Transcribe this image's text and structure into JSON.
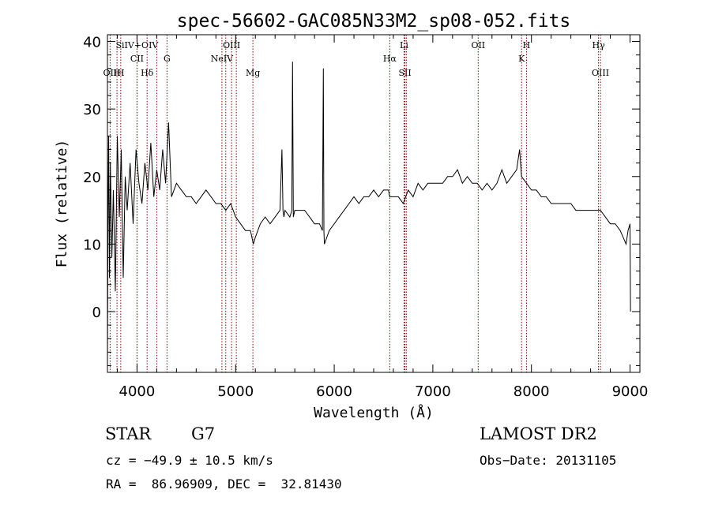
{
  "chart_data": {
    "type": "line",
    "title": "spec-56602-GAC085N33M2_sp08-052.fits",
    "xlabel": "Wavelength (Å)",
    "ylabel": "Flux (relative)",
    "xlim": [
      3700,
      9100
    ],
    "ylim": [
      -9,
      41
    ],
    "xticks": [
      4000,
      5000,
      6000,
      7000,
      8000,
      9000
    ],
    "yticks": [
      0,
      10,
      20,
      30,
      40
    ],
    "grid": false,
    "line_color": "#000000",
    "marker_color": "#8b0000",
    "series": [
      {
        "x": [
          3700,
          3705,
          3712,
          3720,
          3730,
          3745,
          3760,
          3780,
          3800,
          3820,
          3840,
          3860,
          3880,
          3900,
          3930,
          3960,
          3990,
          4020,
          4050,
          4080,
          4110,
          4140,
          4170,
          4200,
          4230,
          4260,
          4290,
          4320,
          4350,
          4400,
          4450,
          4500,
          4550,
          4600,
          4650,
          4700,
          4750,
          4800,
          4850,
          4900,
          4950,
          5000,
          5050,
          5100,
          5150,
          5180,
          5200,
          5250,
          5300,
          5350,
          5400,
          5450,
          5470,
          5480,
          5490,
          5500,
          5550,
          5570,
          5577,
          5585,
          5600,
          5650,
          5700,
          5750,
          5800,
          5850,
          5880,
          5890,
          5895,
          5900,
          5950,
          6000,
          6050,
          6100,
          6150,
          6200,
          6250,
          6300,
          6350,
          6400,
          6450,
          6500,
          6550,
          6563,
          6600,
          6650,
          6700,
          6750,
          6800,
          6850,
          6900,
          6950,
          7000,
          7050,
          7100,
          7150,
          7200,
          7250,
          7300,
          7350,
          7400,
          7450,
          7500,
          7550,
          7600,
          7650,
          7700,
          7750,
          7800,
          7850,
          7880,
          7900,
          7950,
          8000,
          8050,
          8100,
          8150,
          8200,
          8250,
          8300,
          8350,
          8400,
          8450,
          8500,
          8550,
          8600,
          8650,
          8700,
          8750,
          8800,
          8850,
          8900,
          8930,
          8960,
          8980,
          9000,
          9005
        ],
        "y": [
          -8,
          12,
          26,
          5,
          22,
          8,
          18,
          3,
          26,
          14,
          24,
          5,
          20,
          15,
          22,
          13,
          24,
          19,
          16,
          22,
          18,
          25,
          17,
          21,
          18,
          24,
          19,
          28,
          17,
          19,
          18,
          17,
          17,
          16,
          17,
          18,
          17,
          16,
          16,
          15,
          16,
          14,
          13,
          12,
          12,
          10,
          11,
          13,
          14,
          13,
          14,
          15,
          24,
          15,
          14,
          15,
          14,
          15,
          37,
          14,
          15,
          15,
          15,
          14,
          13,
          13,
          12,
          36,
          12,
          10,
          12,
          13,
          14,
          15,
          16,
          17,
          16,
          17,
          17,
          18,
          17,
          18,
          18,
          17,
          17,
          17,
          16,
          18,
          17,
          19,
          18,
          19,
          19,
          19,
          19,
          20,
          20,
          21,
          19,
          20,
          19,
          19,
          18,
          19,
          18,
          19,
          21,
          19,
          20,
          21,
          24,
          20,
          19,
          18,
          18,
          17,
          17,
          16,
          16,
          16,
          16,
          16,
          15,
          15,
          15,
          15,
          15,
          15,
          14,
          13,
          13,
          12,
          11,
          10,
          12,
          13,
          0
        ]
      }
    ],
    "line_markers": [
      {
        "wave": 3727,
        "label": "OII",
        "row": 3
      },
      {
        "wave": 3797,
        "label": "H",
        "row": 3
      },
      {
        "wave": 3835,
        "label": "H",
        "row": 3
      },
      {
        "wave": 4000,
        "label": "SiIV+OIV",
        "row": 1
      },
      {
        "wave": 4000,
        "label": "CII",
        "row": 2
      },
      {
        "wave": 4102,
        "label": "Hδ",
        "row": 3
      },
      {
        "wave": 4200,
        "label": "",
        "row": 0
      },
      {
        "wave": 4304,
        "label": "G",
        "row": 2
      },
      {
        "wave": 4861,
        "label": "NeIV",
        "row": 2
      },
      {
        "wave": 4900,
        "label": "",
        "row": 0
      },
      {
        "wave": 4959,
        "label": "OIII",
        "row": 1
      },
      {
        "wave": 5007,
        "label": "",
        "row": 0
      },
      {
        "wave": 5175,
        "label": "Mg",
        "row": 3
      },
      {
        "wave": 6563,
        "label": "Hα",
        "row": 2
      },
      {
        "wave": 6708,
        "label": "Li",
        "row": 1
      },
      {
        "wave": 6717,
        "label": "SII",
        "row": 3
      },
      {
        "wave": 6731,
        "label": "",
        "row": 0
      },
      {
        "wave": 7460,
        "label": "OII",
        "row": 1
      },
      {
        "wave": 7900,
        "label": "K",
        "row": 2
      },
      {
        "wave": 7950,
        "label": "H",
        "row": 1
      },
      {
        "wave": 8680,
        "label": "Hγ",
        "row": 1
      },
      {
        "wave": 8700,
        "label": "OIII",
        "row": 3
      }
    ]
  },
  "info": {
    "object_class": "STAR",
    "subclass": "G7",
    "survey": "LAMOST DR2",
    "redshift_line": "cz = −49.9 ± 10.5 km/s",
    "obs_date": "Obs−Date: 20131105",
    "coords": "RA =  86.96909, DEC =  32.81430"
  }
}
